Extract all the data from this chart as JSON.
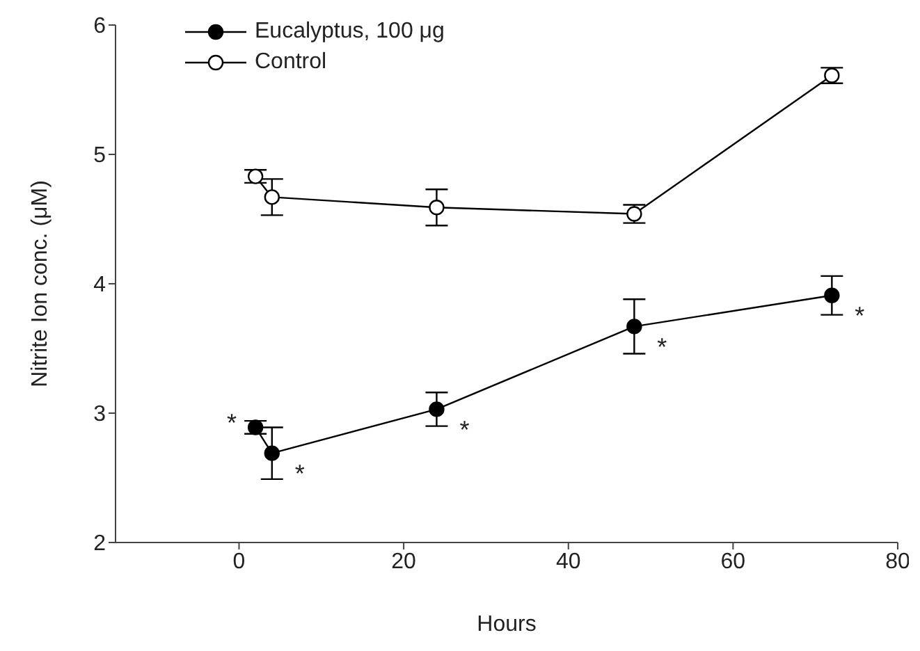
{
  "chart_data": {
    "type": "line",
    "xlabel": "Hours",
    "ylabel": "Nitrite Ion conc. (μM)",
    "x": [
      2,
      4,
      24,
      48,
      72
    ],
    "series": [
      {
        "name": "Eucalyptus, 100 μg",
        "color": "#000000",
        "values": [
          2.89,
          2.69,
          3.03,
          3.67,
          3.91
        ],
        "errors": [
          0.05,
          0.2,
          0.13,
          0.21,
          0.15
        ]
      },
      {
        "name": "Control",
        "color": "#000000",
        "values": [
          4.83,
          4.67,
          4.59,
          4.54,
          5.61
        ],
        "errors": [
          0.05,
          0.14,
          0.14,
          0.07,
          0.06
        ]
      }
    ],
    "xlim": [
      -15,
      80
    ],
    "xticks": [
      0,
      20,
      40,
      60,
      80
    ],
    "ylim": [
      2,
      6
    ],
    "yticks": [
      2,
      3,
      4,
      5,
      6
    ],
    "grid": false,
    "legend": "top left",
    "marker": "circle",
    "line_style": "solid",
    "annotations": [
      {
        "text": "*",
        "x": 2,
        "y": 2.89
      },
      {
        "text": "*",
        "x": 4,
        "y": 2.69
      },
      {
        "text": "*",
        "x": 24,
        "y": 3.03
      },
      {
        "text": "*",
        "x": 48,
        "y": 3.67
      },
      {
        "text": "*",
        "x": 72,
        "y": 3.91
      }
    ]
  }
}
